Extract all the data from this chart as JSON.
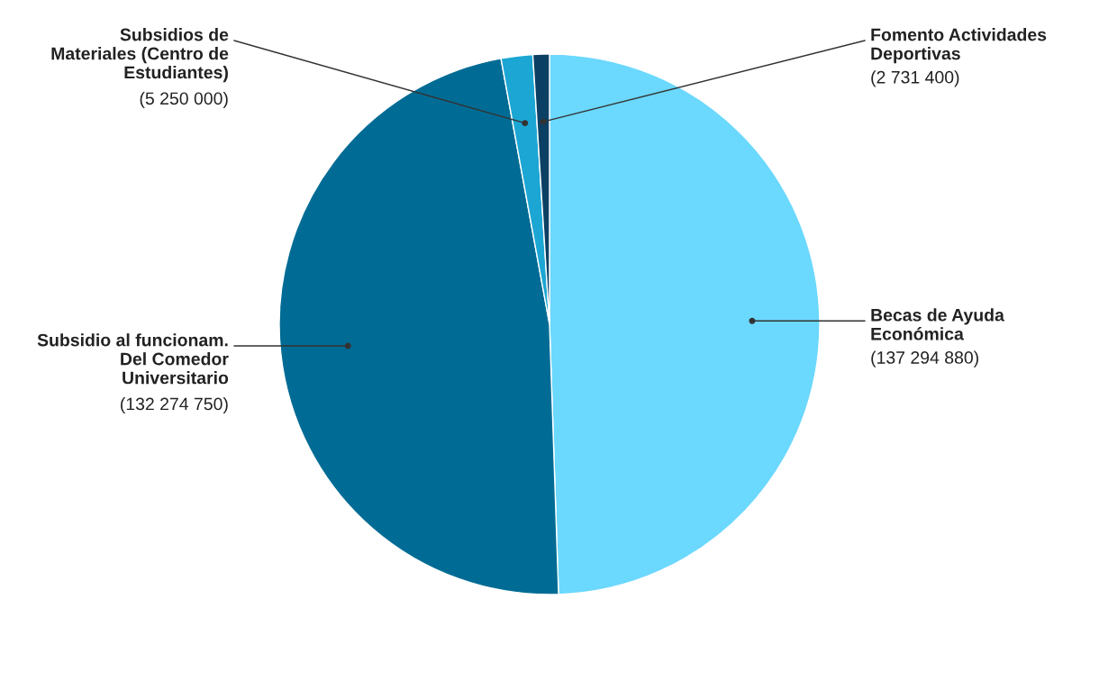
{
  "chart_data": {
    "type": "pie",
    "categories": [
      "Becas de Ayuda Económica",
      "Subsidio al funcionam. Del Comedor Universitario",
      "Subsidios de Materiales (Centro de Estudiantes)",
      "Fomento Actividades Deportivas"
    ],
    "values": [
      137294880,
      132274750,
      5250000,
      2731400
    ],
    "colors": [
      "#6bd8fd",
      "#006c95",
      "#1ca6d3",
      "#0b4064"
    ],
    "value_labels": [
      "(137 294 880)",
      "(132 274 750)",
      "(5 250 000)",
      "(2 731 400)"
    ]
  }
}
